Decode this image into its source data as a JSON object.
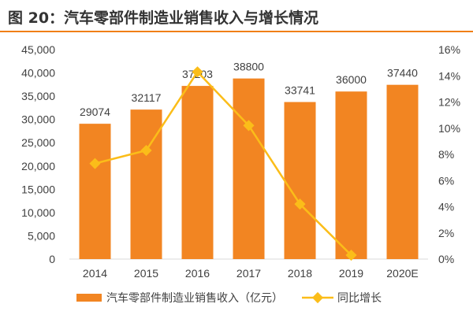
{
  "title": "图 20：汽车零部件制造业销售收入与增长情况",
  "chart_data": {
    "type": "bar+line",
    "categories": [
      "2014",
      "2015",
      "2016",
      "2017",
      "2018",
      "2019",
      "2020E"
    ],
    "series": [
      {
        "name": "汽车零部件制造业销售收入（亿元）",
        "type": "bar",
        "axis": "left",
        "values": [
          29074,
          32117,
          37203,
          38800,
          33741,
          36000,
          37440
        ],
        "color": "#f28522"
      },
      {
        "name": "同比增长",
        "type": "line",
        "axis": "right",
        "values": [
          7.3,
          8.3,
          14.3,
          10.2,
          4.2,
          0.3,
          null
        ],
        "color": "#fbbd19"
      }
    ],
    "ylim_left": [
      0,
      45000
    ],
    "yticks_left": [
      "0",
      "5,000",
      "10,000",
      "15,000",
      "20,000",
      "25,000",
      "30,000",
      "35,000",
      "40,000",
      "45,000"
    ],
    "ylim_right": [
      0,
      16
    ],
    "yticks_right": [
      "0%",
      "2%",
      "4%",
      "6%",
      "8%",
      "10%",
      "12%",
      "14%",
      "16%"
    ],
    "grid": false,
    "legend": "bottom"
  }
}
